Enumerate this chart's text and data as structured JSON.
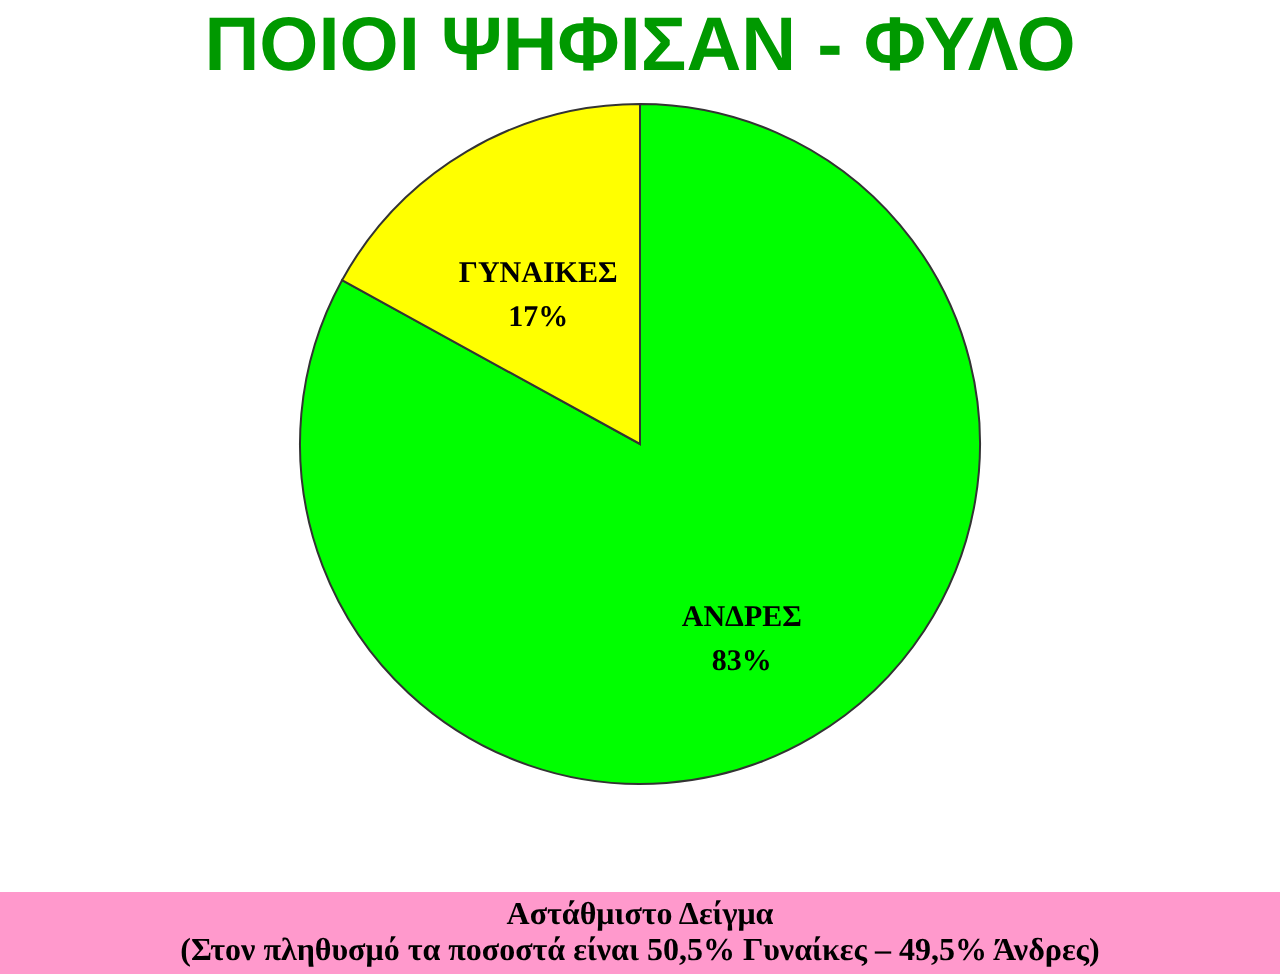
{
  "chart_data": {
    "type": "pie",
    "title": "ΠΟΙΟΙ ΨΗΦΙΣΑΝ - ΦΥΛΟ",
    "categories": [
      "ΑΝΔΡΕΣ",
      "ΓΥΝΑΙΚΕΣ"
    ],
    "values": [
      83,
      17
    ],
    "value_labels": [
      "83%",
      "17%"
    ],
    "colors": [
      "#00ff00",
      "#ffff00"
    ],
    "legend": false,
    "annotations": [
      "Αστάθμιστο Δείγμα",
      "(Στον πληθυσμό τα ποσοστά είναι 50,5% Γυναίκες – 49,5% Άνδρες)"
    ]
  }
}
